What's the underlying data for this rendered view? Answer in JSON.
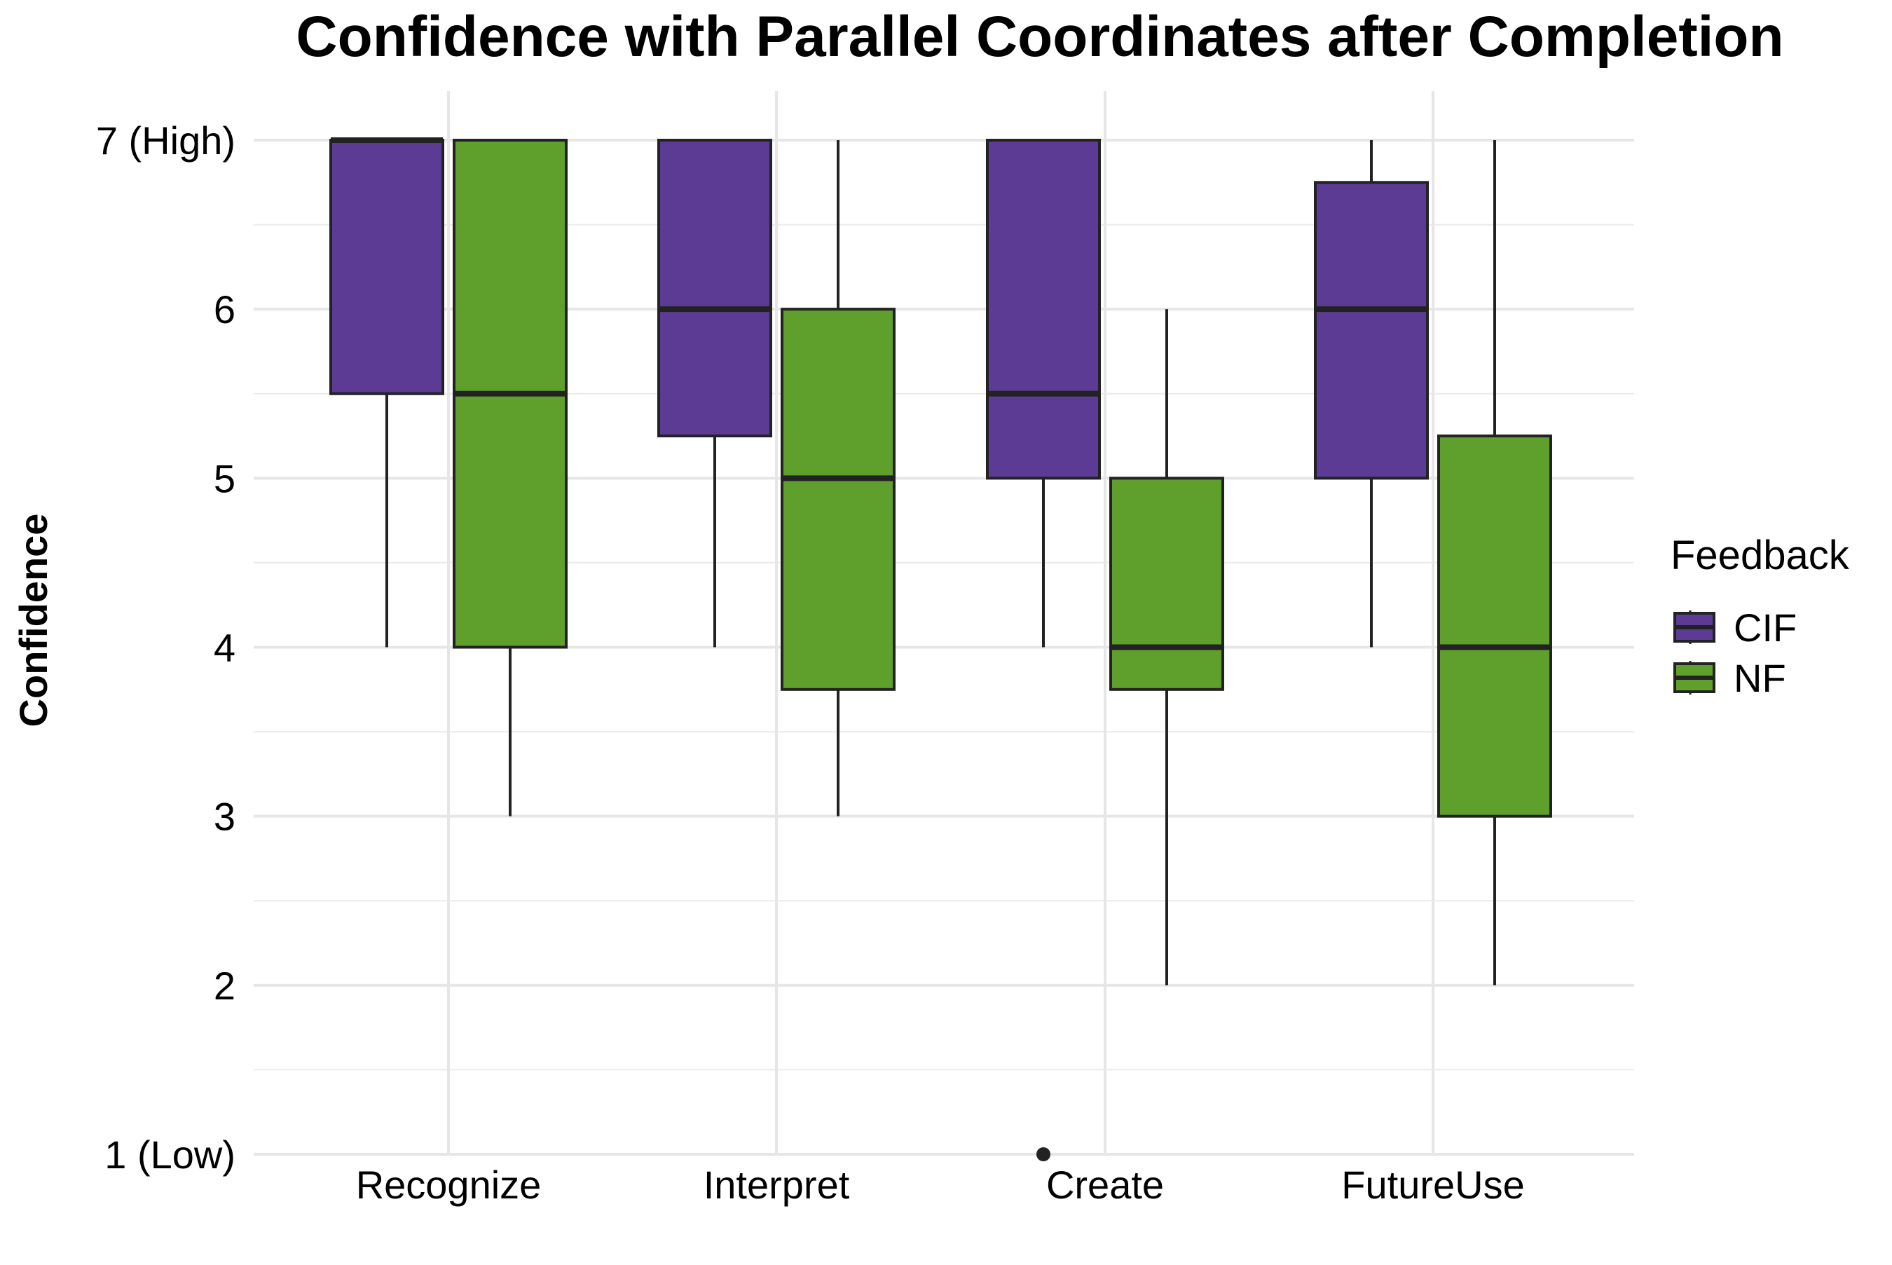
{
  "chart_data": {
    "type": "boxplot",
    "title": "Confidence with Parallel Coordinates after Completion",
    "xlabel": "",
    "ylabel": "Confidence",
    "ylim": [
      1,
      7
    ],
    "y_ticks": [
      {
        "value": 7,
        "label": "7 (High)"
      },
      {
        "value": 6,
        "label": "6"
      },
      {
        "value": 5,
        "label": "5"
      },
      {
        "value": 4,
        "label": "4"
      },
      {
        "value": 3,
        "label": "3"
      },
      {
        "value": 2,
        "label": "2"
      },
      {
        "value": 1,
        "label": "1 (Low)"
      }
    ],
    "categories": [
      "Recognize",
      "Interpret",
      "Create",
      "FutureUse"
    ],
    "grid": true,
    "legend": {
      "title": "Feedback",
      "position": "right"
    },
    "series": [
      {
        "name": "CIF",
        "color": "#5b3b93",
        "boxes": [
          {
            "category": "Recognize",
            "min": 4,
            "q1": 5.5,
            "median": 7,
            "q3": 7,
            "max": 7,
            "outliers": []
          },
          {
            "category": "Interpret",
            "min": 4,
            "q1": 5.25,
            "median": 6,
            "q3": 7,
            "max": 7,
            "outliers": []
          },
          {
            "category": "Create",
            "min": 4,
            "q1": 5,
            "median": 5.5,
            "q3": 7,
            "max": 7,
            "outliers": [
              1
            ]
          },
          {
            "category": "FutureUse",
            "min": 4,
            "q1": 5,
            "median": 6,
            "q3": 6.75,
            "max": 7,
            "outliers": []
          }
        ]
      },
      {
        "name": "NF",
        "color": "#5f9f2b",
        "boxes": [
          {
            "category": "Recognize",
            "min": 3,
            "q1": 4,
            "median": 5.5,
            "q3": 7,
            "max": 7,
            "outliers": []
          },
          {
            "category": "Interpret",
            "min": 3,
            "q1": 3.75,
            "median": 5,
            "q3": 6,
            "max": 7,
            "outliers": []
          },
          {
            "category": "Create",
            "min": 2,
            "q1": 3.75,
            "median": 4,
            "q3": 5,
            "max": 6,
            "outliers": []
          },
          {
            "category": "FutureUse",
            "min": 2,
            "q1": 3,
            "median": 4,
            "q3": 5.25,
            "max": 7,
            "outliers": []
          }
        ]
      }
    ]
  }
}
